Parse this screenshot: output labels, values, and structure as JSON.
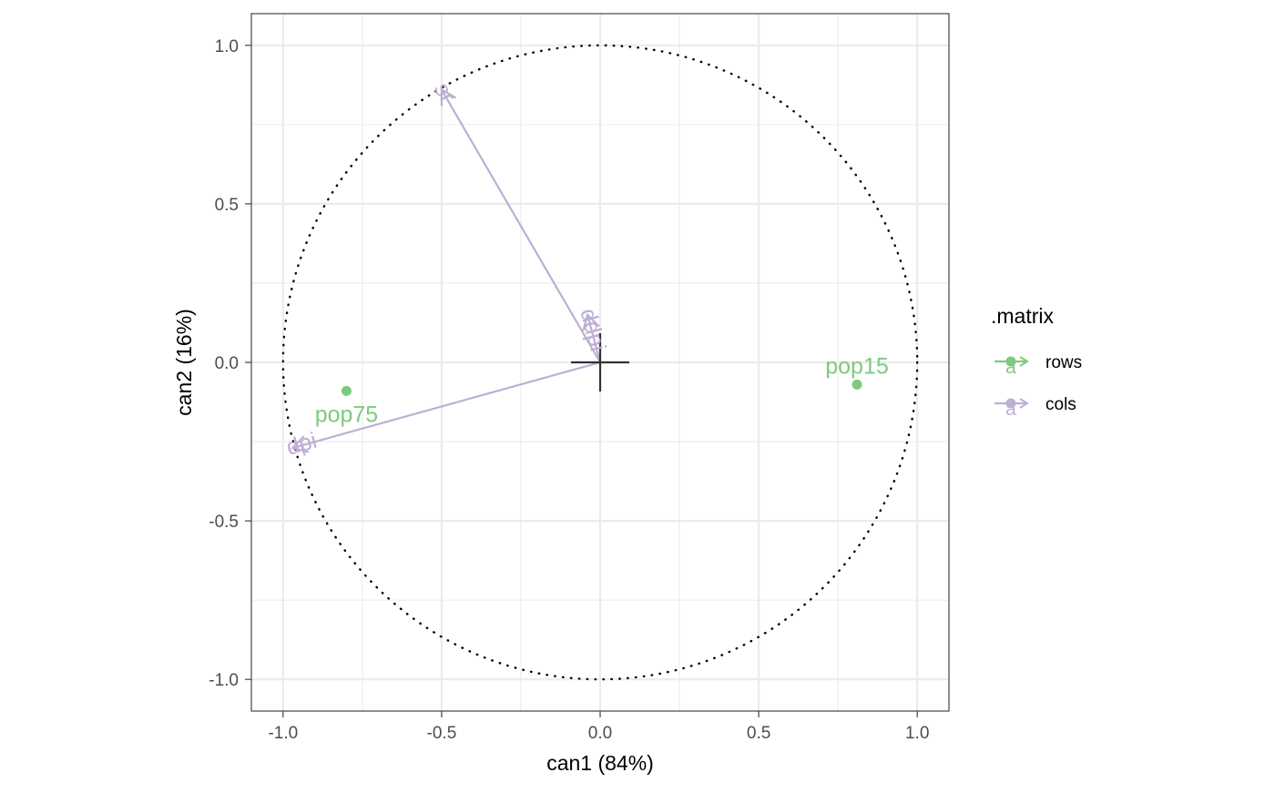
{
  "chart_data": {
    "type": "scatter",
    "title": "",
    "xlabel": "can1 (84%)",
    "ylabel": "can2 (16%)",
    "xlim": [
      -1.1,
      1.1
    ],
    "ylim": [
      -1.1,
      1.1
    ],
    "x_ticks": [
      {
        "value": -1.0,
        "label": "-1.0"
      },
      {
        "value": -0.5,
        "label": "-0.5"
      },
      {
        "value": 0.0,
        "label": "0.0"
      },
      {
        "value": 0.5,
        "label": "0.5"
      },
      {
        "value": 1.0,
        "label": "1.0"
      }
    ],
    "y_ticks": [
      {
        "value": 1.0,
        "label": "1.0"
      },
      {
        "value": 0.5,
        "label": "0.5"
      },
      {
        "value": 0.0,
        "label": "0.0"
      },
      {
        "value": -0.5,
        "label": "-0.5"
      },
      {
        "value": -1.0,
        "label": "-1.0"
      }
    ],
    "minor_breaks": [
      -0.75,
      -0.25,
      0.25,
      0.75
    ],
    "grid": true,
    "unit_circle": true,
    "legend": {
      "title": ".matrix",
      "position": "right",
      "entries": [
        {
          "label": "rows",
          "color": "#7fc97f"
        },
        {
          "label": "cols",
          "color": "#beaed4"
        }
      ],
      "key_glyph": "a"
    },
    "rows": [
      {
        "name": "pop75",
        "x": -0.8,
        "y": -0.09
      },
      {
        "name": "pop15",
        "x": 0.81,
        "y": -0.07
      }
    ],
    "cols": [
      {
        "name": "sr",
        "x": -0.5,
        "y": 0.86
      },
      {
        "name": "ddpi",
        "x": -0.04,
        "y": 0.15
      },
      {
        "name": "dpi",
        "x": -0.97,
        "y": -0.27
      }
    ],
    "colors": {
      "rows": "#7fc97f",
      "cols": "#beaed4",
      "grid": "#ebebeb",
      "axis_text": "#4d4d4d",
      "cross": "#333333"
    }
  }
}
